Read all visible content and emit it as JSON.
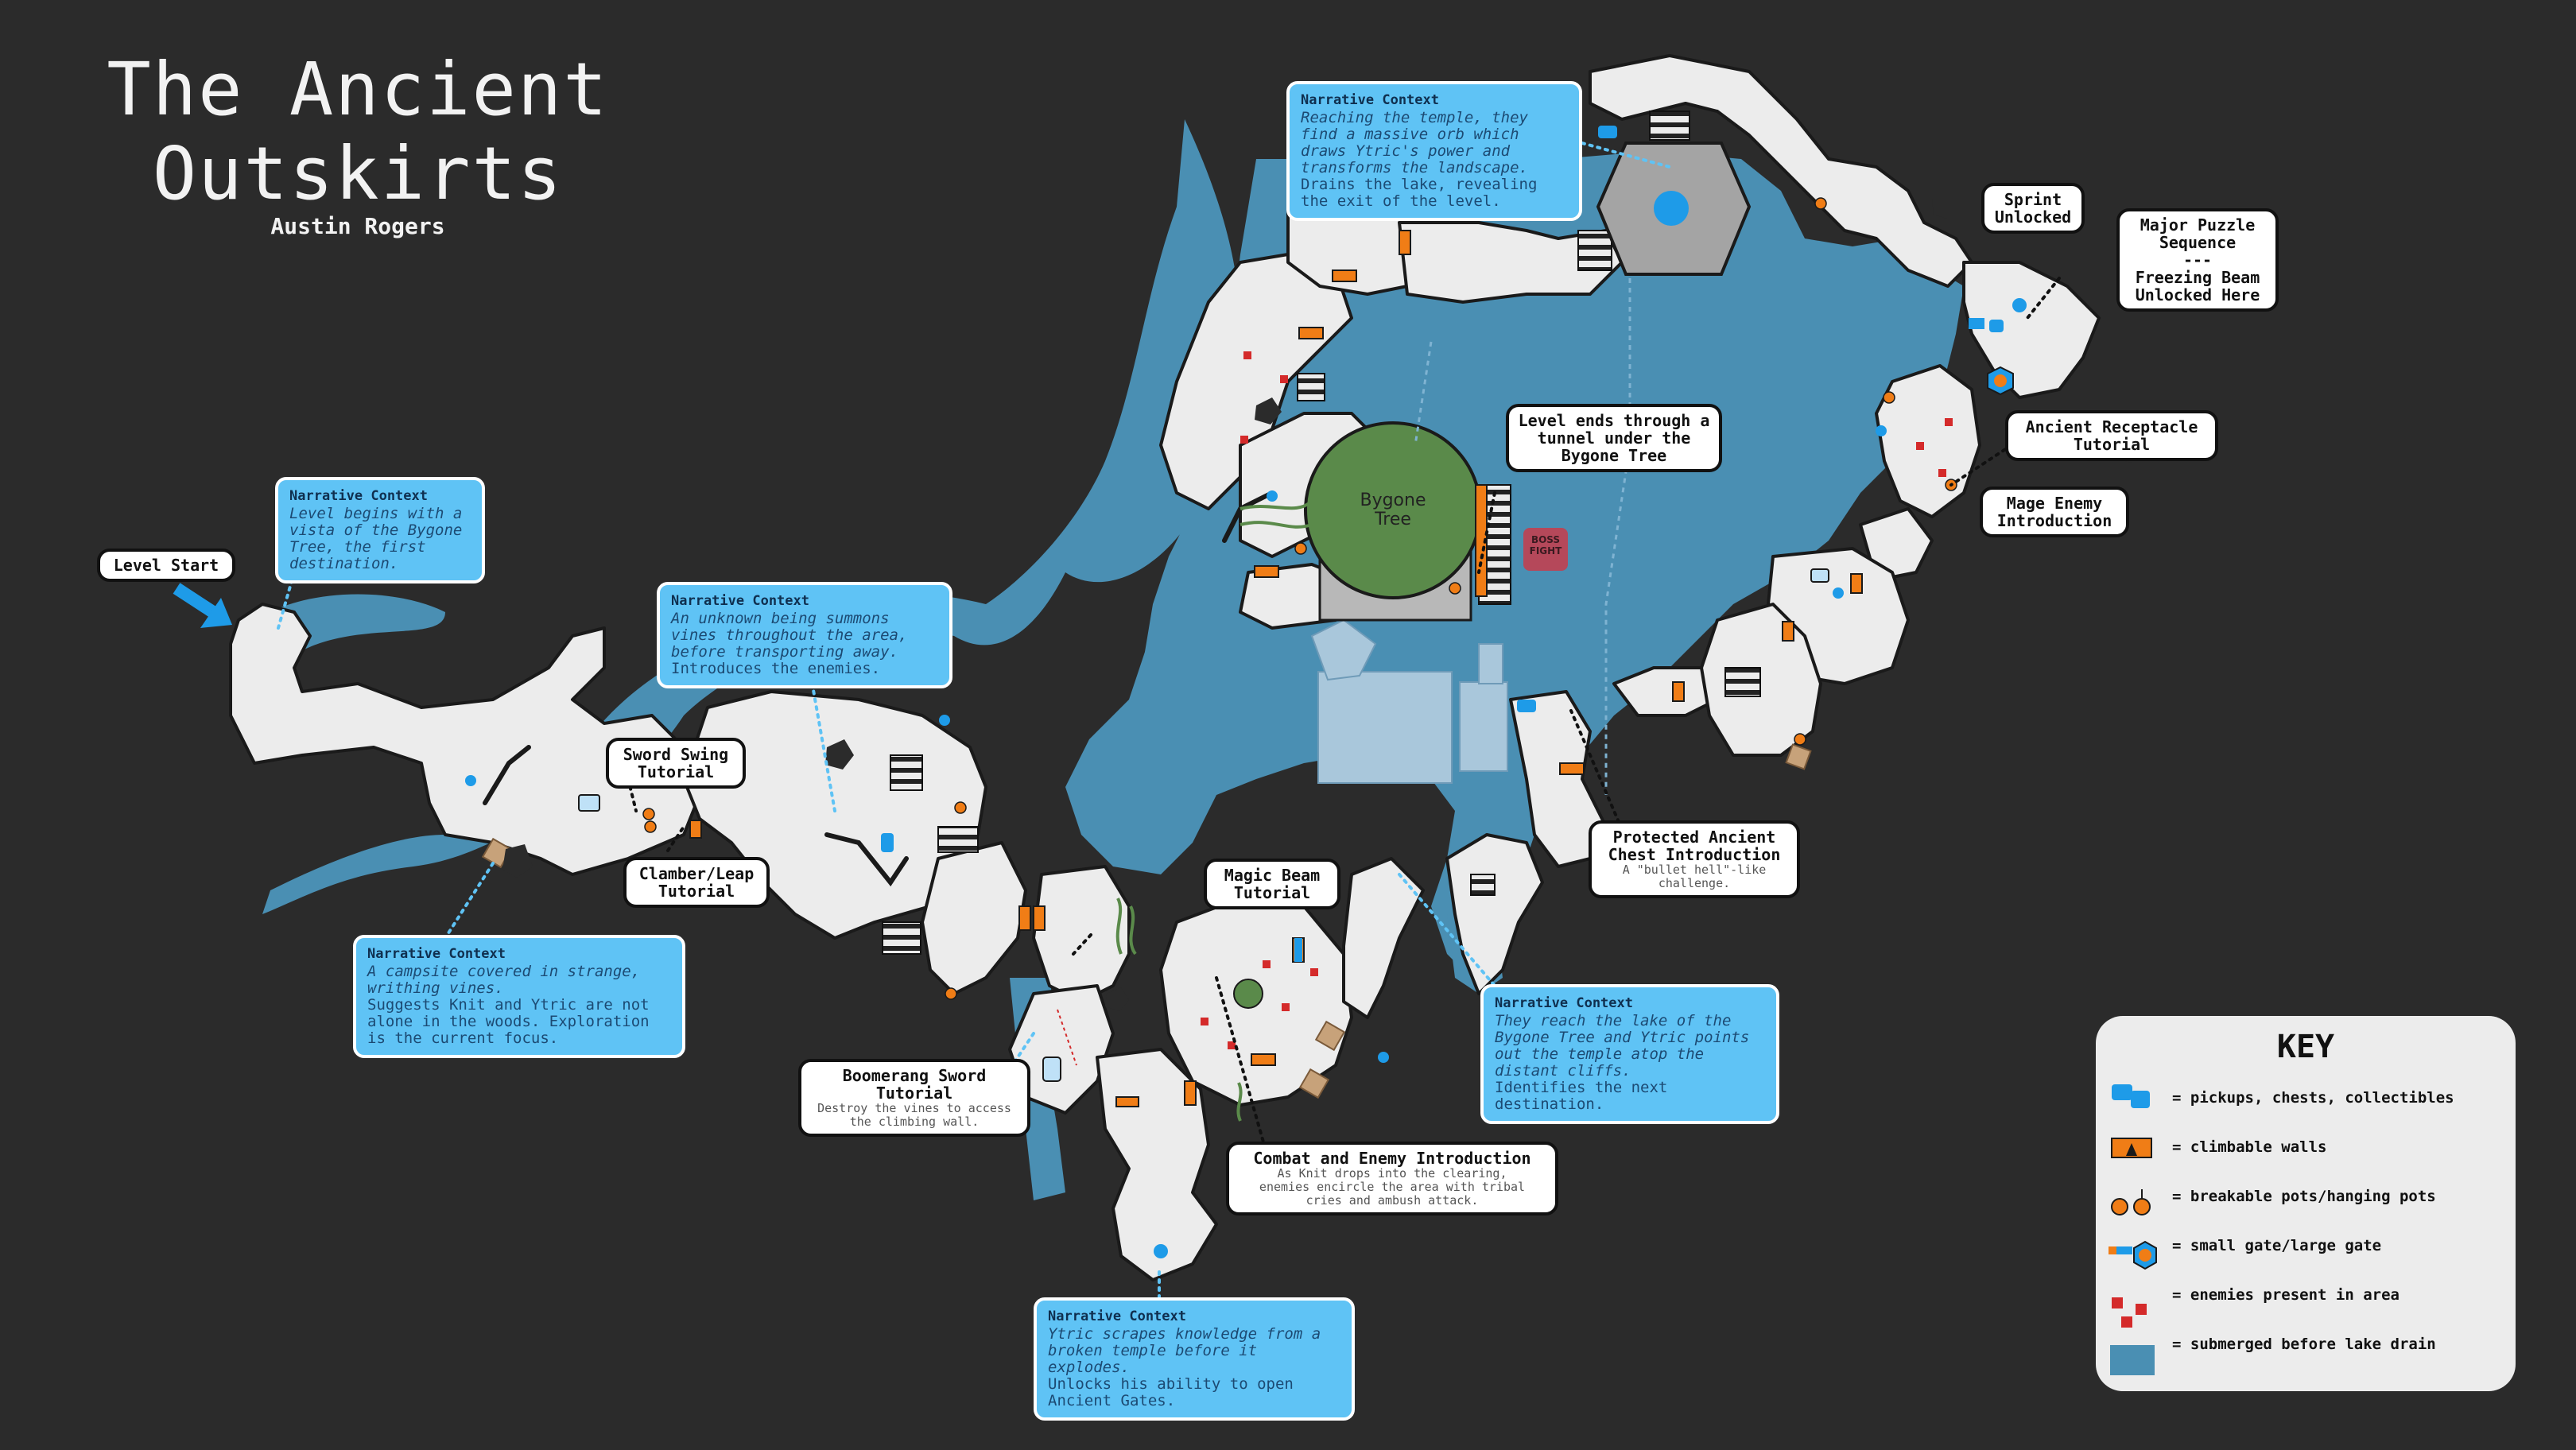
{
  "title": "The Ancient\nOutskirts",
  "author": "Austin Rogers",
  "colors": {
    "background": "#2b2b2b",
    "water": "#4a8fb3",
    "ground": "#ececec",
    "outline": "#1a1a1a",
    "accent_blue": "#1e9be8",
    "accent_orange": "#f07d16",
    "enemy_red": "#d42a2a",
    "tree_green": "#5a8a4a",
    "boss": "#b5485a",
    "narrative_box": "#5fc3f5"
  },
  "map_labels": {
    "tree": "Bygone\nTree",
    "boss": "BOSS\nFIGHT"
  },
  "narratives": [
    {
      "id": "vista",
      "heading": "Narrative Context",
      "italic": "Level begins with a\nvista of the Bygone\nTree, the first\ndestination.",
      "plain": ""
    },
    {
      "id": "summons",
      "heading": "Narrative Context",
      "italic": "An unknown being summons\nvines throughout the area,\nbefore transporting away.",
      "plain": "Introduces the enemies."
    },
    {
      "id": "campsite",
      "heading": "Narrative Context",
      "italic": "A campsite covered in strange,\nwrithing vines.",
      "plain": "Suggests Knit and Ytric are not\nalone in the woods. Exploration\nis the current focus."
    },
    {
      "id": "temple-orb",
      "heading": "Narrative Context",
      "italic": "Reaching the temple, they\nfind a massive orb which\ndraws Ytric's power and\ntransforms the landscape.",
      "plain": "Drains the lake, revealing\nthe exit of the level."
    },
    {
      "id": "lake",
      "heading": "Narrative Context",
      "italic": "They reach the lake of the\nBygone Tree and Ytric points\nout the temple atop the\ndistant cliffs.",
      "plain": "Identifies the next\ndestination."
    },
    {
      "id": "broken-temple",
      "heading": "Narrative Context",
      "italic": "Ytric scrapes knowledge from a\nbroken temple before it\nexplodes.",
      "plain": "Unlocks his ability to open\nAncient Gates."
    }
  ],
  "callouts": [
    {
      "id": "level-start",
      "label": "Level Start",
      "sub": ""
    },
    {
      "id": "sword-swing",
      "label": "Sword Swing\nTutorial",
      "sub": ""
    },
    {
      "id": "clamber",
      "label": "Clamber/Leap\nTutorial",
      "sub": ""
    },
    {
      "id": "boomerang",
      "label": "Boomerang Sword\nTutorial",
      "sub": "Destroy the vines to access\nthe climbing wall."
    },
    {
      "id": "magic-beam",
      "label": "Magic Beam\nTutorial",
      "sub": ""
    },
    {
      "id": "combat",
      "label": "Combat and Enemy Introduction",
      "sub": "As Knit drops into the clearing,\nenemies encircle the area with tribal\ncries and ambush attack."
    },
    {
      "id": "level-ends",
      "label": "Level ends through a\ntunnel under the\nBygone Tree",
      "sub": ""
    },
    {
      "id": "protected-chest",
      "label": "Protected Ancient\nChest Introduction",
      "sub": "A \"bullet hell\"-like\nchallenge."
    },
    {
      "id": "sprint",
      "label": "Sprint\nUnlocked",
      "sub": ""
    },
    {
      "id": "major-puzzle",
      "label": "Major Puzzle\nSequence\n---\nFreezing Beam\nUnlocked Here",
      "sub": ""
    },
    {
      "id": "receptacle",
      "label": "Ancient Receptacle\nTutorial",
      "sub": ""
    },
    {
      "id": "mage",
      "label": "Mage Enemy\nIntroduction",
      "sub": ""
    }
  ],
  "key": {
    "title": "KEY",
    "items": [
      {
        "icon": "pickup-icon",
        "label": "= pickups, chests, collectibles"
      },
      {
        "icon": "climbable-wall-icon",
        "label": "= climbable walls"
      },
      {
        "icon": "pot-icon",
        "label": "= breakable pots/hanging pots"
      },
      {
        "icon": "gate-icon",
        "label": "= small gate/large gate"
      },
      {
        "icon": "enemy-icon",
        "label": "= enemies present in area"
      },
      {
        "icon": "submerged-icon",
        "label": "= submerged before lake drain"
      }
    ]
  }
}
